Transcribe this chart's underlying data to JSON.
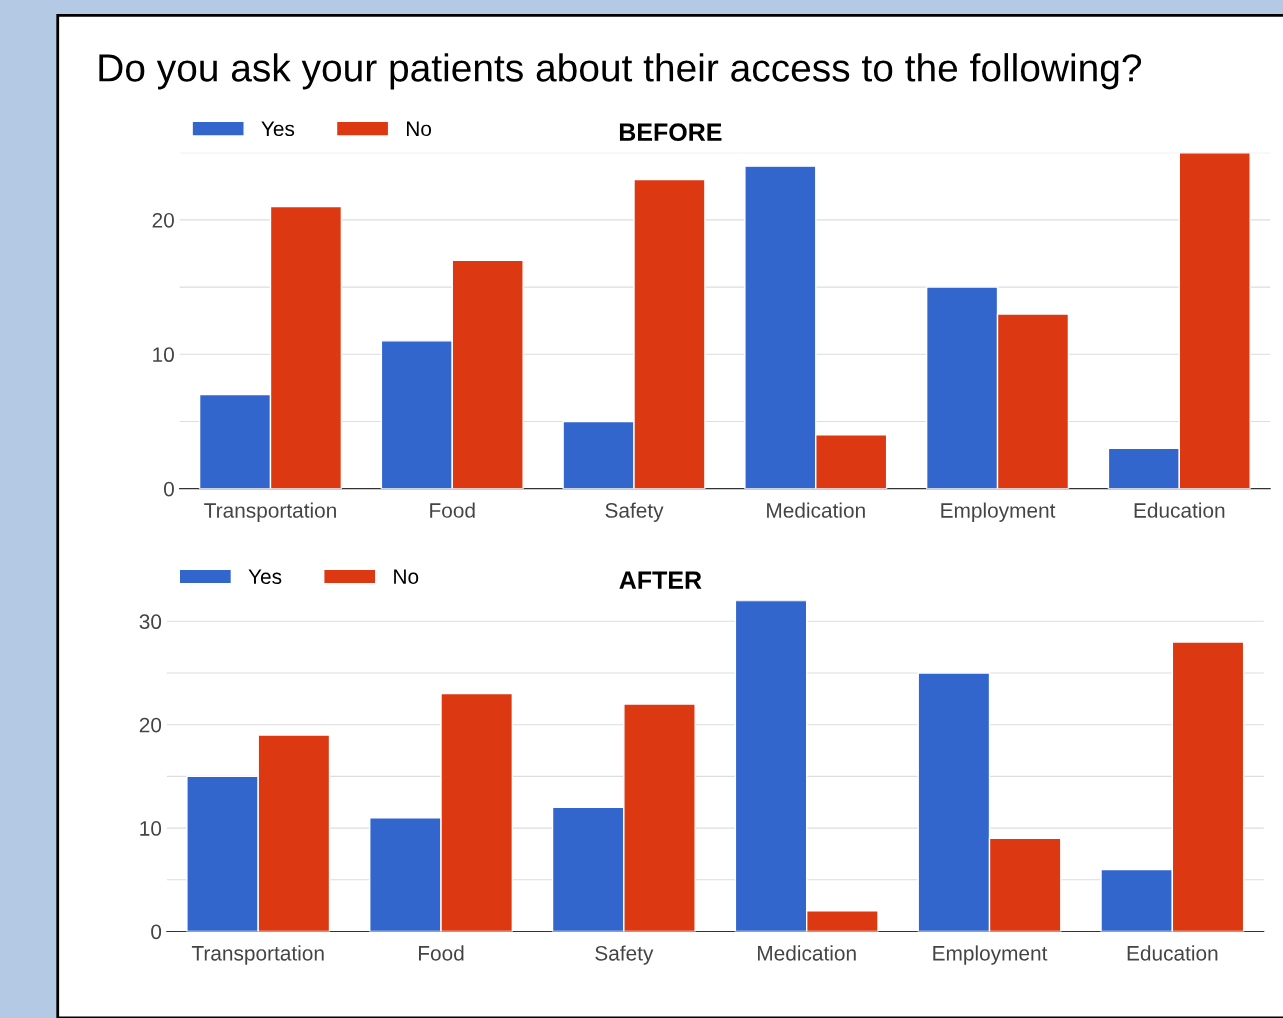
{
  "chart_data": [
    {
      "type": "bar",
      "title": "Do you ask your patients about their access to the following?",
      "subtitle": "BEFORE",
      "categories": [
        "Transportation",
        "Food",
        "Safety",
        "Medication",
        "Employment",
        "Education"
      ],
      "series": [
        {
          "name": "Yes",
          "color": "#3366cc",
          "values": [
            7,
            11,
            5,
            24,
            15,
            3
          ]
        },
        {
          "name": "No",
          "color": "#dc3912",
          "values": [
            21,
            17,
            23,
            4,
            13,
            25
          ]
        }
      ],
      "ylim": [
        0,
        25
      ],
      "yticks": [
        0,
        {
          "value": 5,
          "label": null
        },
        10,
        {
          "value": 15,
          "label": null
        },
        20,
        {
          "value": 25,
          "label": null
        }
      ],
      "grid": "y",
      "legend": "top left"
    },
    {
      "type": "bar",
      "subtitle": "AFTER",
      "categories": [
        "Transportation",
        "Food",
        "Safety",
        "Medication",
        "Employment",
        "Education"
      ],
      "series": [
        {
          "name": "Yes",
          "color": "#3366cc",
          "values": [
            15,
            11,
            12,
            32,
            25,
            6
          ]
        },
        {
          "name": "No",
          "color": "#dc3912",
          "values": [
            19,
            23,
            22,
            2,
            9,
            28
          ]
        }
      ],
      "ylim": [
        0,
        32
      ],
      "yticks": [
        0,
        {
          "value": 5,
          "label": null
        },
        10,
        {
          "value": 15,
          "label": null
        },
        20,
        {
          "value": 25,
          "label": null
        },
        30
      ],
      "grid": "y",
      "legend": "top left"
    }
  ]
}
